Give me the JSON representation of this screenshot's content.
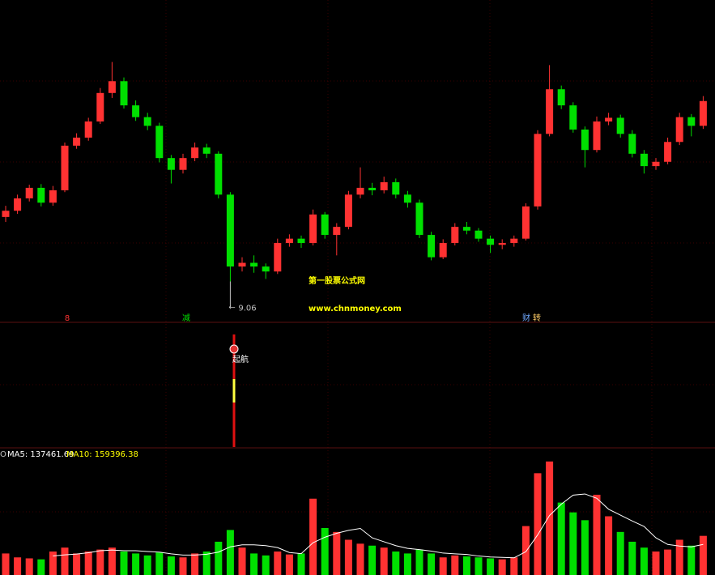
{
  "chart_data": {
    "type": "candlestick",
    "up_color": "#ff3232",
    "down_color": "#00e000",
    "open": [
      10.1,
      10.2,
      10.4,
      10.57,
      10.33,
      10.53,
      11.25,
      11.38,
      11.64,
      12.1,
      12.29,
      11.9,
      11.71,
      11.57,
      11.05,
      10.86,
      11.05,
      11.22,
      11.12,
      10.46,
      9.3,
      9.36,
      9.3,
      9.22,
      9.68,
      9.75,
      9.68,
      10.14,
      9.81,
      9.94,
      10.46,
      10.57,
      10.53,
      10.66,
      10.46,
      10.33,
      9.81,
      9.45,
      9.68,
      9.94,
      9.88,
      9.75,
      9.65,
      9.68,
      9.75,
      10.27,
      11.44,
      12.16,
      11.9,
      11.51,
      11.18,
      11.64,
      11.7,
      11.44,
      11.12,
      10.92,
      10.99,
      11.31,
      11.71,
      11.57
    ],
    "high": [
      10.28,
      10.46,
      10.62,
      10.63,
      10.6,
      11.3,
      11.45,
      11.7,
      12.18,
      12.6,
      12.35,
      11.98,
      11.78,
      11.62,
      11.1,
      11.12,
      11.3,
      11.28,
      11.16,
      10.5,
      9.45,
      9.48,
      9.35,
      9.75,
      9.82,
      9.8,
      10.22,
      10.18,
      10.0,
      10.52,
      10.9,
      10.65,
      10.75,
      10.72,
      10.52,
      10.38,
      9.86,
      9.74,
      10.0,
      10.02,
      9.92,
      9.8,
      9.74,
      9.8,
      10.32,
      11.5,
      12.55,
      12.22,
      11.95,
      11.56,
      11.72,
      11.78,
      11.75,
      11.5,
      11.18,
      11.05,
      11.38,
      11.78,
      11.76,
      12.05
    ],
    "low": [
      10.02,
      10.15,
      10.35,
      10.27,
      10.28,
      10.5,
      11.2,
      11.33,
      11.6,
      12.02,
      11.85,
      11.65,
      11.5,
      10.98,
      10.64,
      10.8,
      11.0,
      11.05,
      10.4,
      9.06,
      9.22,
      9.2,
      9.1,
      9.18,
      9.62,
      9.6,
      9.64,
      9.75,
      9.48,
      9.9,
      10.4,
      10.45,
      10.48,
      10.4,
      10.25,
      9.76,
      9.4,
      9.42,
      9.64,
      9.82,
      9.7,
      9.52,
      9.58,
      9.62,
      9.72,
      10.22,
      11.4,
      11.84,
      11.46,
      10.9,
      11.14,
      11.58,
      11.38,
      11.06,
      10.8,
      10.86,
      10.95,
      11.26,
      11.4,
      11.52
    ],
    "close": [
      10.2,
      10.4,
      10.57,
      10.33,
      10.53,
      11.25,
      11.38,
      11.64,
      12.1,
      12.29,
      11.9,
      11.71,
      11.57,
      11.05,
      10.86,
      11.05,
      11.22,
      11.12,
      10.46,
      9.3,
      9.36,
      9.3,
      9.22,
      9.68,
      9.75,
      9.68,
      10.14,
      9.81,
      9.94,
      10.46,
      10.57,
      10.53,
      10.66,
      10.46,
      10.33,
      9.81,
      9.45,
      9.68,
      9.94,
      9.88,
      9.75,
      9.65,
      9.68,
      9.75,
      10.27,
      11.44,
      12.16,
      11.9,
      11.51,
      11.18,
      11.64,
      11.7,
      11.44,
      11.12,
      10.92,
      10.99,
      11.31,
      11.71,
      11.57,
      11.97
    ],
    "ylim": [
      8.4,
      13.6
    ],
    "low_marker": "←",
    "markers": [
      "8",
      "减",
      "财",
      "转"
    ],
    "watermark": [
      "第一股票公式网",
      "www.chnmoney.com"
    ],
    "signal_label": "起航",
    "volume": {
      "header": [
        "O",
        "MA5: 137461.69",
        "MA10: 159396.38"
      ],
      "ylim": [
        0,
        600000
      ],
      "values": [
        110000,
        90000,
        85000,
        80000,
        120000,
        140000,
        110000,
        120000,
        130000,
        140000,
        120000,
        110000,
        100000,
        115000,
        95000,
        90000,
        110000,
        120000,
        170000,
        230000,
        140000,
        110000,
        100000,
        120000,
        105000,
        110000,
        390000,
        240000,
        220000,
        180000,
        160000,
        150000,
        140000,
        120000,
        110000,
        130000,
        110000,
        90000,
        100000,
        95000,
        90000,
        85000,
        80000,
        90000,
        250000,
        520000,
        580000,
        370000,
        320000,
        280000,
        410000,
        300000,
        220000,
        170000,
        140000,
        120000,
        130000,
        180000,
        150000,
        200000
      ],
      "ma5": [
        null,
        null,
        null,
        null,
        97000,
        103000,
        107000,
        114000,
        124000,
        128000,
        124000,
        124000,
        120000,
        117000,
        108000,
        102000,
        102000,
        106000,
        117000,
        144000,
        154000,
        154000,
        150000,
        140000,
        115000,
        109000,
        165000,
        193000,
        213000,
        228000,
        238000,
        190000,
        170000,
        150000,
        136000,
        130000,
        122000,
        112000,
        108000,
        105000,
        97000,
        92000,
        90000,
        88000,
        119000,
        205000,
        304000,
        362000,
        408000,
        414000,
        392000,
        336000,
        306000,
        276000,
        248000,
        190000,
        156000,
        148000,
        144000,
        156000
      ],
      "ma5_color": "#ffffff"
    }
  }
}
